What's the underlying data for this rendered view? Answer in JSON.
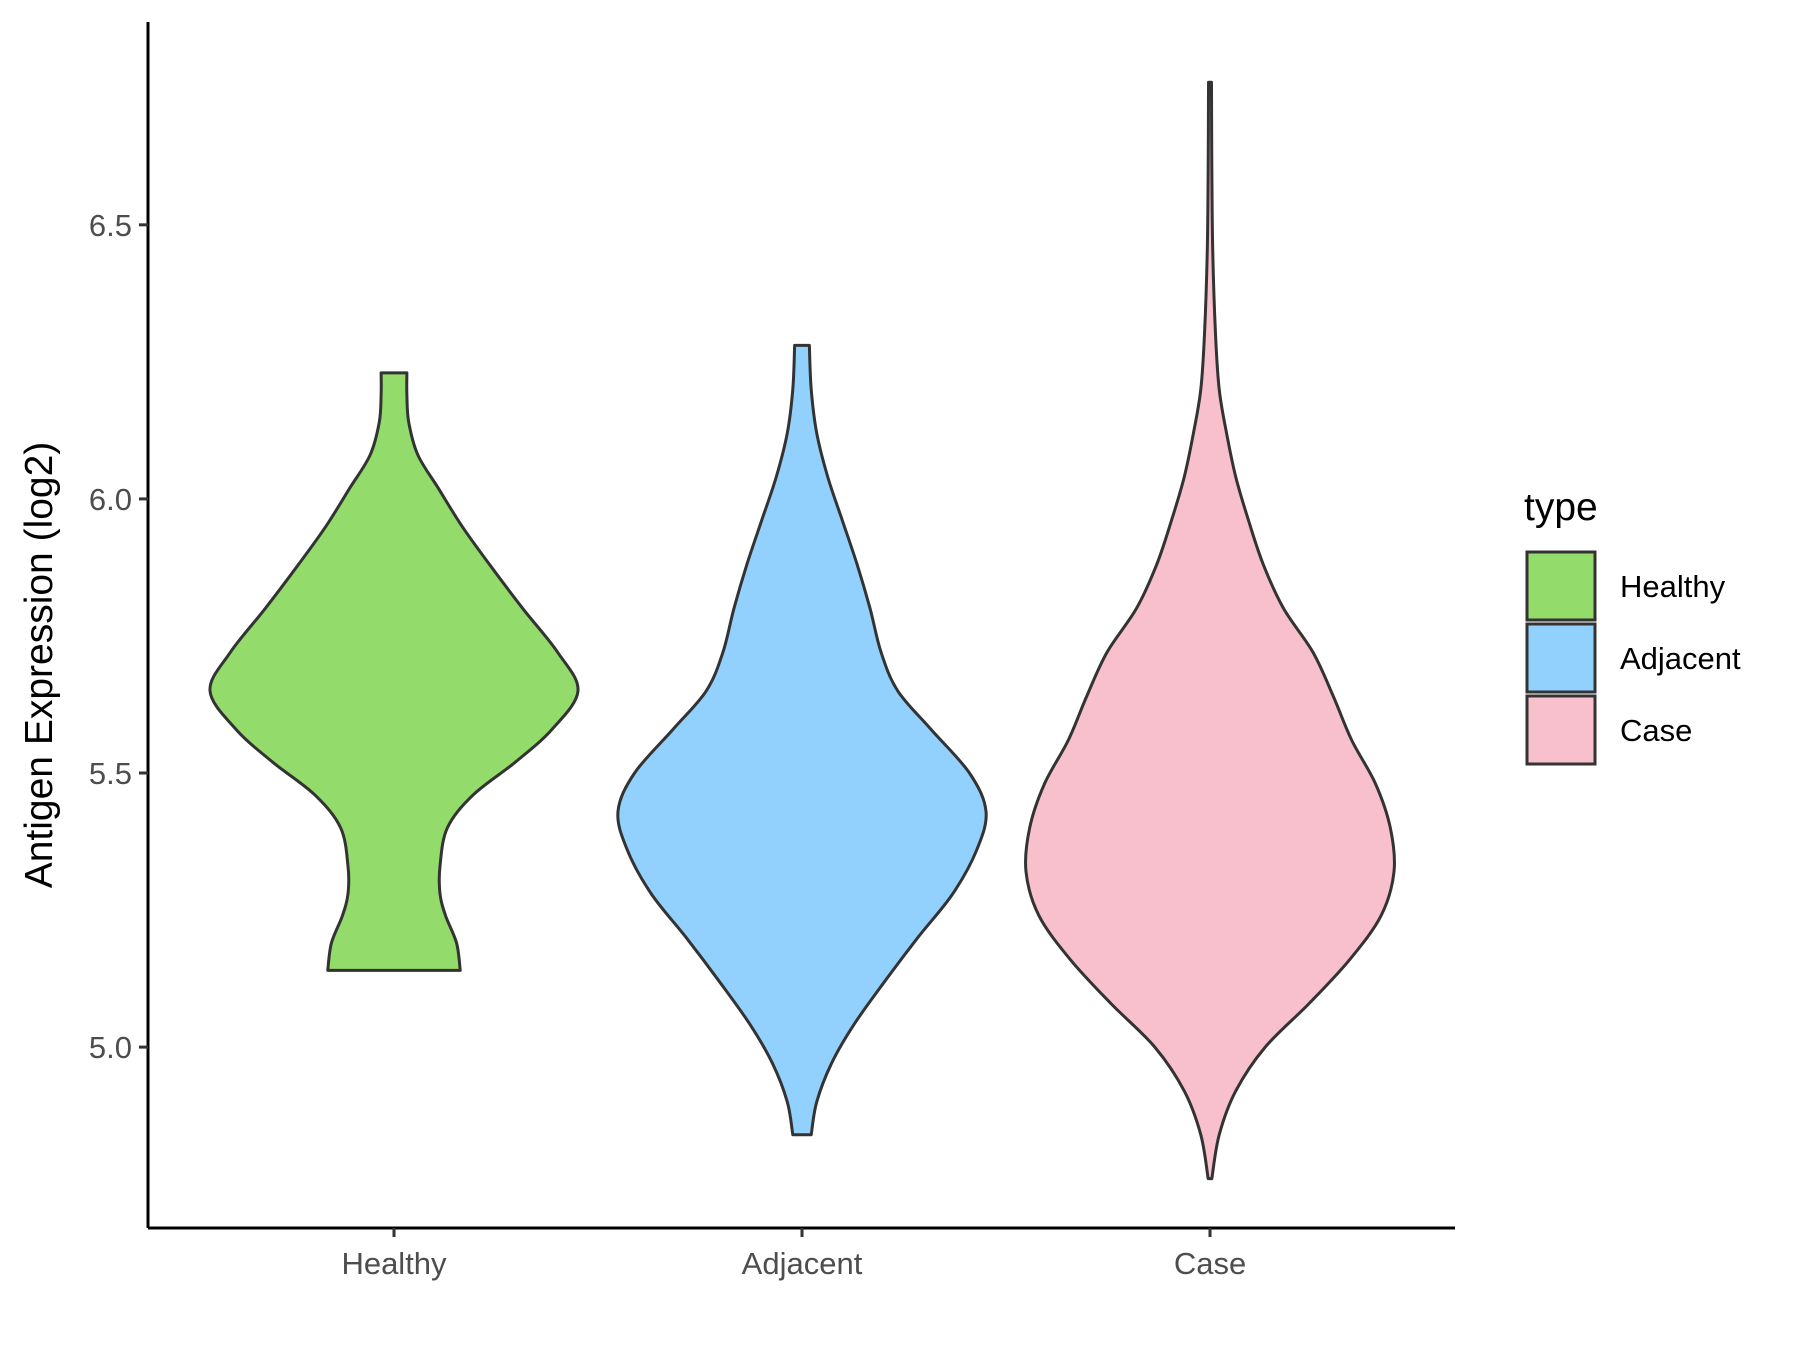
{
  "chart_data": {
    "type": "violin",
    "xlabel": "",
    "ylabel": "Antigen Expression (log2)",
    "ylim": [
      4.67,
      6.87
    ],
    "y_ticks": [
      5.0,
      5.5,
      6.0,
      6.5
    ],
    "y_tick_labels": [
      "5.0",
      "5.5",
      "6.0",
      "6.5"
    ],
    "categories": [
      "Healthy",
      "Adjacent",
      "Case"
    ],
    "legend": {
      "title": "type",
      "position": "right",
      "entries": [
        {
          "label": "Healthy",
          "color": "#93db6a"
        },
        {
          "label": "Adjacent",
          "color": "#92d1fd"
        },
        {
          "label": "Case",
          "color": "#f7c0cc"
        }
      ]
    },
    "grid": false,
    "outline_color": "#333333",
    "series": [
      {
        "category": "Healthy",
        "color": "#93db6a",
        "min": 5.14,
        "max": 6.23,
        "density": [
          [
            5.14,
            0.36
          ],
          [
            5.19,
            0.34
          ],
          [
            5.24,
            0.28
          ],
          [
            5.28,
            0.25
          ],
          [
            5.33,
            0.25
          ],
          [
            5.4,
            0.29
          ],
          [
            5.46,
            0.43
          ],
          [
            5.52,
            0.66
          ],
          [
            5.58,
            0.86
          ],
          [
            5.65,
            1.0
          ],
          [
            5.72,
            0.89
          ],
          [
            5.8,
            0.7
          ],
          [
            5.88,
            0.52
          ],
          [
            5.95,
            0.37
          ],
          [
            6.02,
            0.24
          ],
          [
            6.08,
            0.13
          ],
          [
            6.14,
            0.08
          ],
          [
            6.19,
            0.07
          ],
          [
            6.23,
            0.07
          ]
        ]
      },
      {
        "category": "Adjacent",
        "color": "#92d1fd",
        "min": 4.84,
        "max": 6.28,
        "density": [
          [
            4.84,
            0.05
          ],
          [
            4.9,
            0.08
          ],
          [
            4.97,
            0.16
          ],
          [
            5.04,
            0.28
          ],
          [
            5.12,
            0.45
          ],
          [
            5.2,
            0.63
          ],
          [
            5.28,
            0.82
          ],
          [
            5.36,
            0.95
          ],
          [
            5.43,
            1.0
          ],
          [
            5.5,
            0.91
          ],
          [
            5.58,
            0.7
          ],
          [
            5.65,
            0.52
          ],
          [
            5.72,
            0.43
          ],
          [
            5.8,
            0.37
          ],
          [
            5.88,
            0.3
          ],
          [
            5.96,
            0.22
          ],
          [
            6.04,
            0.14
          ],
          [
            6.12,
            0.08
          ],
          [
            6.2,
            0.05
          ],
          [
            6.28,
            0.04
          ]
        ]
      },
      {
        "category": "Case",
        "color": "#f7c0cc",
        "min": 4.76,
        "max": 6.76,
        "density": [
          [
            4.76,
            0.01
          ],
          [
            4.84,
            0.05
          ],
          [
            4.92,
            0.14
          ],
          [
            5.0,
            0.3
          ],
          [
            5.08,
            0.54
          ],
          [
            5.16,
            0.76
          ],
          [
            5.24,
            0.93
          ],
          [
            5.32,
            1.0
          ],
          [
            5.4,
            0.98
          ],
          [
            5.48,
            0.9
          ],
          [
            5.56,
            0.77
          ],
          [
            5.64,
            0.67
          ],
          [
            5.72,
            0.56
          ],
          [
            5.8,
            0.4
          ],
          [
            5.88,
            0.29
          ],
          [
            5.96,
            0.21
          ],
          [
            6.04,
            0.14
          ],
          [
            6.12,
            0.09
          ],
          [
            6.2,
            0.05
          ],
          [
            6.3,
            0.03
          ],
          [
            6.45,
            0.015
          ],
          [
            6.6,
            0.01
          ],
          [
            6.76,
            0.008
          ]
        ]
      }
    ]
  }
}
